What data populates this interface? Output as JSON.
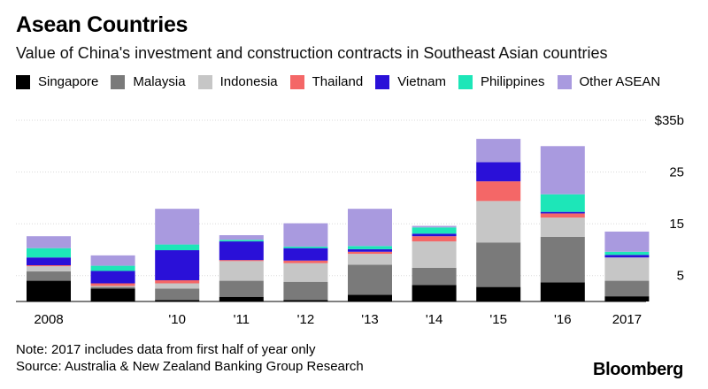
{
  "title": "Asean Countries",
  "subtitle": "Value of China's investment and construction contracts in Southeast Asian countries",
  "note": "Note: 2017 includes data from first half of year only",
  "source": "Source: Australia & New Zealand Banking Group Research",
  "brand": "Bloomberg",
  "chart_data": {
    "type": "bar",
    "stacked": true,
    "categories": [
      "2008",
      "",
      "'10",
      "'11",
      "'12",
      "'13",
      "'14",
      "'15",
      "'16",
      "2017"
    ],
    "y_tick_labels": [
      "5",
      "15",
      "25",
      "$35b"
    ],
    "y_ticks": [
      5,
      15,
      25,
      35
    ],
    "ylim": [
      0,
      35
    ],
    "grid": true,
    "legend_position": "top",
    "series": [
      {
        "name": "Singapore",
        "color": "#000000",
        "values": [
          4.0,
          2.5,
          0.3,
          0.9,
          0.3,
          1.3,
          3.2,
          2.8,
          3.7,
          1.0
        ]
      },
      {
        "name": "Malaysia",
        "color": "#7a7a7a",
        "values": [
          1.8,
          0.3,
          2.2,
          3.1,
          3.5,
          5.8,
          3.3,
          8.6,
          8.8,
          3.0
        ]
      },
      {
        "name": "Indonesia",
        "color": "#c6c6c6",
        "values": [
          1.0,
          0.2,
          1.0,
          3.8,
          3.6,
          2.1,
          5.1,
          8.0,
          3.7,
          4.5
        ]
      },
      {
        "name": "Thailand",
        "color": "#f46767",
        "values": [
          0.2,
          0.5,
          0.6,
          0.2,
          0.5,
          0.4,
          1.0,
          3.8,
          0.8,
          0.0
        ]
      },
      {
        "name": "Vietnam",
        "color": "#2a10d8",
        "values": [
          1.5,
          2.4,
          5.8,
          3.6,
          2.4,
          0.5,
          0.5,
          3.7,
          0.3,
          0.5
        ]
      },
      {
        "name": "Philippines",
        "color": "#1de6b8",
        "values": [
          1.8,
          1.0,
          1.1,
          0.3,
          0.3,
          0.6,
          1.2,
          0.0,
          3.4,
          0.6
        ]
      },
      {
        "name": "Other ASEAN",
        "color": "#a99adf",
        "values": [
          2.3,
          2.0,
          6.9,
          0.9,
          4.5,
          7.2,
          0.3,
          4.5,
          9.3,
          3.9
        ]
      }
    ]
  }
}
